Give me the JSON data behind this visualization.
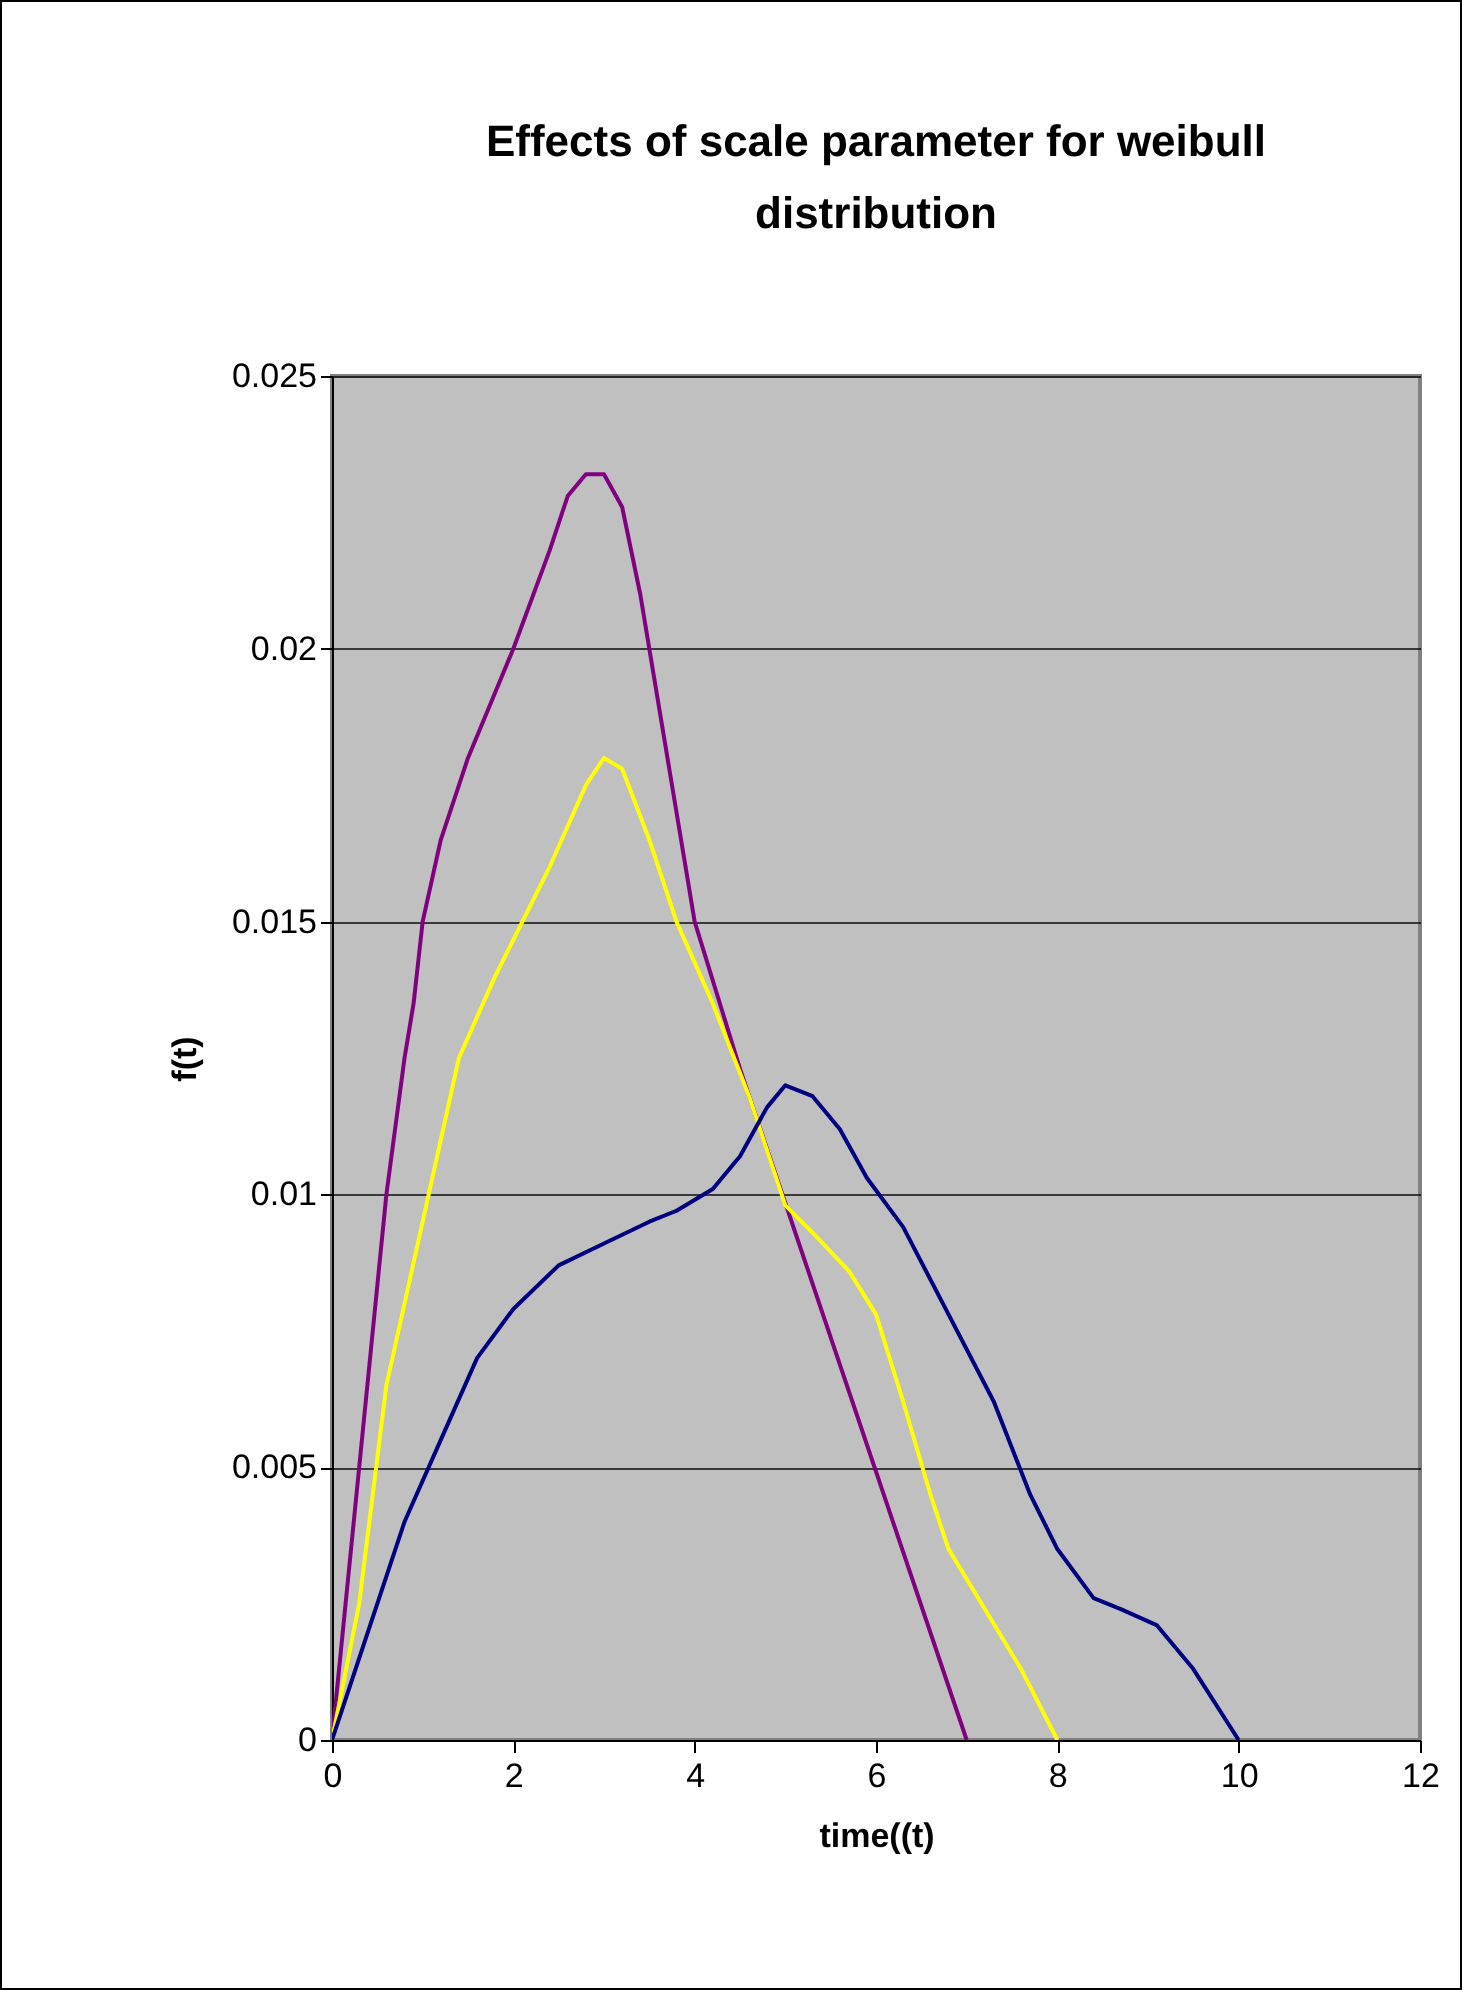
{
  "chart_data": {
    "type": "line",
    "title": "Effects of scale parameter for weibull distribution",
    "xlabel": "time((t)",
    "ylabel": "f(t)",
    "xlim": [
      0,
      12
    ],
    "xticks": [
      0,
      2,
      4,
      6,
      8,
      10,
      12
    ],
    "ylim": [
      0,
      0.025
    ],
    "yticks": [
      0,
      0.005,
      0.01,
      0.015,
      0.02,
      0.025
    ],
    "grid": "y",
    "marker": "none",
    "line_style": "solid",
    "series": [
      {
        "color": "#800080",
        "x": [
          0,
          0.6,
          0.8,
          0.9,
          1.0,
          1.2,
          1.5,
          2.0,
          2.4,
          2.6,
          2.8,
          3.0,
          3.2,
          3.4,
          3.6,
          3.8,
          4.0,
          4.5,
          7
        ],
        "values": [
          0,
          0.01,
          0.0125,
          0.0135,
          0.015,
          0.0165,
          0.018,
          0.02,
          0.0218,
          0.0228,
          0.0232,
          0.0232,
          0.0226,
          0.021,
          0.019,
          0.017,
          0.015,
          0.0123,
          0
        ]
      },
      {
        "color": "#ffff00",
        "x": [
          0,
          0.3,
          0.6,
          1.0,
          1.4,
          1.8,
          2.4,
          2.8,
          3.0,
          3.2,
          3.5,
          3.8,
          4.2,
          4.6,
          5.0,
          5.3,
          5.7,
          6.0,
          6.3,
          6.6,
          6.8,
          7.2,
          7.6,
          8
        ],
        "values": [
          0,
          0.0025,
          0.0065,
          0.0095,
          0.0125,
          0.014,
          0.016,
          0.0175,
          0.018,
          0.0178,
          0.0165,
          0.015,
          0.0135,
          0.0118,
          0.0098,
          0.0093,
          0.0086,
          0.0078,
          0.0062,
          0.0045,
          0.0035,
          0.0024,
          0.0013,
          0
        ]
      },
      {
        "color": "#000080",
        "x": [
          0,
          0.5,
          0.8,
          1.2,
          1.6,
          2.0,
          2.5,
          3.0,
          3.5,
          3.8,
          4.2,
          4.5,
          4.8,
          5.0,
          5.3,
          5.6,
          5.9,
          6.3,
          6.8,
          7.3,
          7.7,
          8.0,
          8.4,
          8.7,
          9.1,
          9.5,
          10
        ],
        "values": [
          0,
          0.0025,
          0.004,
          0.0055,
          0.007,
          0.0079,
          0.0087,
          0.0091,
          0.0095,
          0.0097,
          0.0101,
          0.0107,
          0.0116,
          0.012,
          0.0118,
          0.0112,
          0.0103,
          0.0094,
          0.0078,
          0.0062,
          0.0045,
          0.0035,
          0.0026,
          0.0024,
          0.0021,
          0.0013,
          0
        ]
      }
    ]
  }
}
